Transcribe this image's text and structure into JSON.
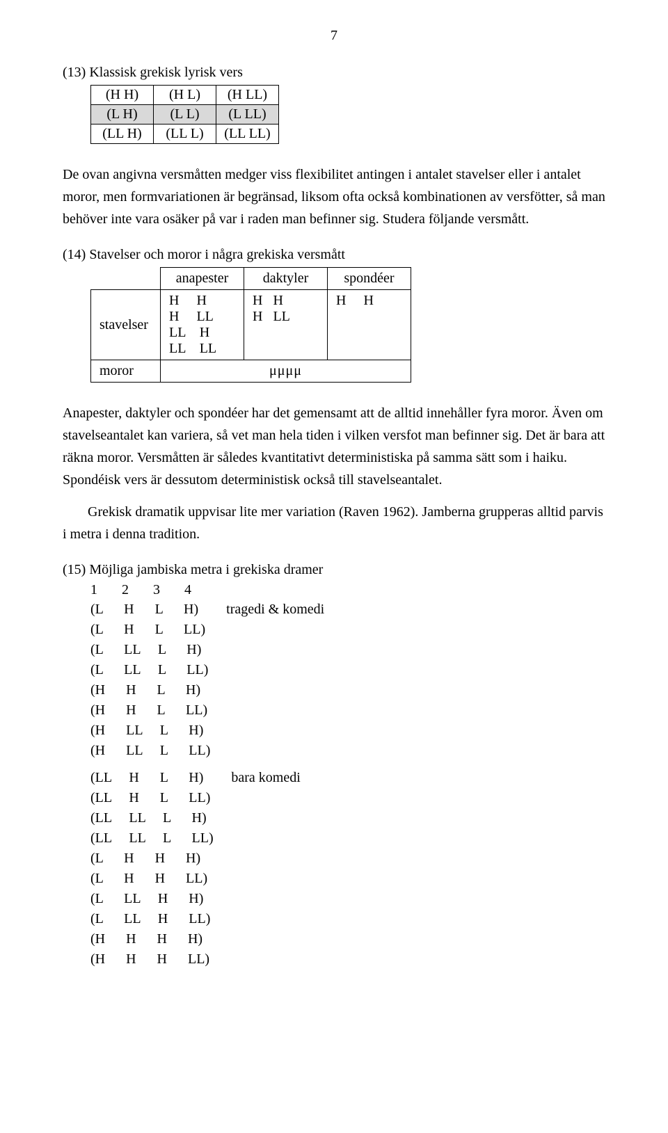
{
  "page_number": "7",
  "sec13": {
    "heading": "(13) Klassisk grekisk lyrisk vers",
    "table": {
      "rows": [
        {
          "cells": [
            "(H   H)",
            "(H   L)",
            "(H   LL)"
          ],
          "shaded": false
        },
        {
          "cells": [
            "(L   H)",
            "(L   L)",
            "(L   LL)"
          ],
          "shaded": true
        },
        {
          "cells": [
            "(LL   H)",
            "(LL   L)",
            "(LL   LL)"
          ],
          "shaded": false
        }
      ]
    },
    "text": "De ovan angivna versmåtten medger viss flexibilitet antingen i antalet stavelser eller i antalet moror, men formvariationen är begränsad, liksom ofta också kombinationen av versfötter, så man behöver inte vara osäker på var i raden man befinner sig. Studera följande versmått."
  },
  "sec14": {
    "heading": "(14) Stavelser och moror i några grekiska versmått",
    "cols": [
      "anapester",
      "daktyler",
      "spondéer"
    ],
    "rowlabels": {
      "stavelser": "stavelser",
      "moror": "moror"
    },
    "cells": {
      "anapester": "H     H\nH     LL\nLL    H\nLL    LL",
      "daktyler": "H   H\nH   LL",
      "spondeer": "H     H"
    },
    "moror_value": "μμμμ",
    "text1": "Anapester, daktyler och spondéer har det gemensamt att de alltid innehåller fyra moror. Även om stavelseantalet kan variera, så vet man hela tiden i vilken versfot man befinner sig. Det är bara att räkna moror. Versmåtten är således kvantitativt deterministiska på samma sätt som i haiku. Spondéisk vers är dessutom deterministisk också till stavelseantalet.",
    "text2": "Grekisk dramatik uppvisar lite mer variation (Raven 1962). Jamberna grupperas alltid parvis i metra i denna tradition."
  },
  "sec15": {
    "heading": "(15)  Möjliga jambiska metra i grekiska dramer",
    "nums": "1       2       3       4",
    "group1_label": "tragedi & komedi",
    "group1": [
      "(L      H      L      H)",
      "(L      H      L      LL)",
      "(L      LL     L      H)",
      "(L      LL     L      LL)",
      "(H      H      L      H)",
      "(H      H      L      LL)",
      "(H      LL     L      H)",
      "(H      LL     L      LL)"
    ],
    "group2_label": "bara komedi",
    "group2": [
      "(LL     H      L      H)",
      "(LL     H      L      LL)",
      "(LL     LL     L      H)",
      "(LL     LL     L      LL)",
      "(L      H      H      H)",
      "(L      H      H      LL)",
      "(L      LL     H      H)",
      "(L      LL     H      LL)",
      "(H      H      H      H)",
      "(H      H      H      LL)"
    ]
  },
  "style": {
    "background_color": "#ffffff",
    "text_color": "#000000",
    "shaded_row_color": "#d9d9d9",
    "font_family": "Times New Roman",
    "body_fontsize": 20
  }
}
